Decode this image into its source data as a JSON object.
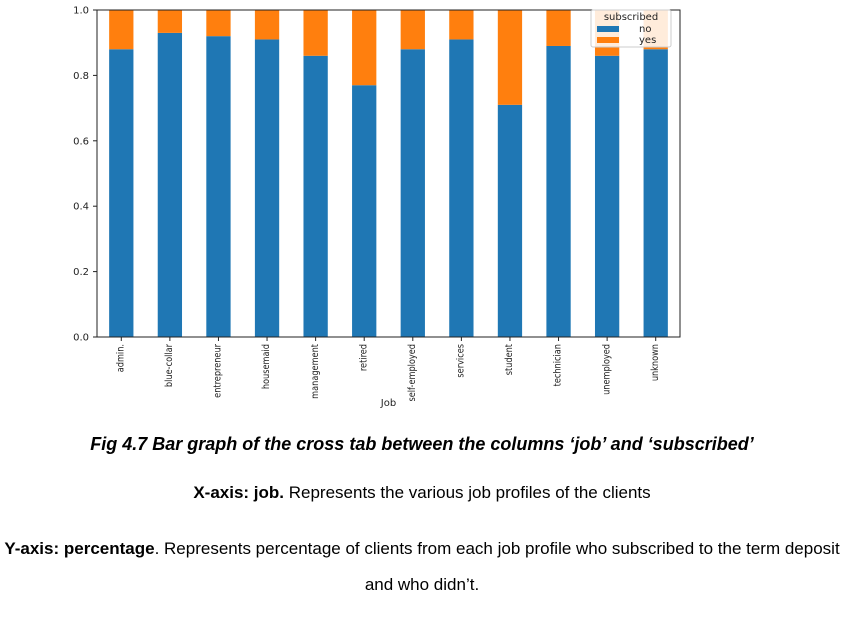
{
  "chart_data": {
    "type": "bar",
    "stacked": true,
    "categories": [
      "admin.",
      "blue-collar",
      "entrepreneur",
      "housemaid",
      "management",
      "retired",
      "self-employed",
      "services",
      "student",
      "technician",
      "unemployed",
      "unknown"
    ],
    "series": [
      {
        "name": "no",
        "color": "#1f77b4",
        "values": [
          0.88,
          0.93,
          0.92,
          0.91,
          0.86,
          0.77,
          0.88,
          0.91,
          0.71,
          0.89,
          0.86,
          0.88
        ]
      },
      {
        "name": "yes",
        "color": "#ff7f0e",
        "values": [
          0.12,
          0.07,
          0.08,
          0.09,
          0.14,
          0.23,
          0.12,
          0.09,
          0.29,
          0.11,
          0.14,
          0.12
        ]
      }
    ],
    "yticks": [
      "0.0",
      "0.2",
      "0.4",
      "0.6",
      "0.8",
      "1.0"
    ],
    "ylim": [
      0,
      1.0
    ],
    "xlabel": "Job",
    "ylabel": "",
    "legend": {
      "title": "subscribed",
      "placement": "top-right"
    },
    "grid": false
  },
  "captions": {
    "figure": "Fig 4.7 Bar graph of the cross tab between the columns ‘job’ and ‘subscribed’",
    "x_bold": "X-axis: job.",
    "x_text": " Represents the various job profiles of the clients",
    "y_bold": "Y-axis: percentage",
    "y_text": ". Represents percentage of clients from each job profile who subscribed to the term deposit and who didn’t."
  }
}
